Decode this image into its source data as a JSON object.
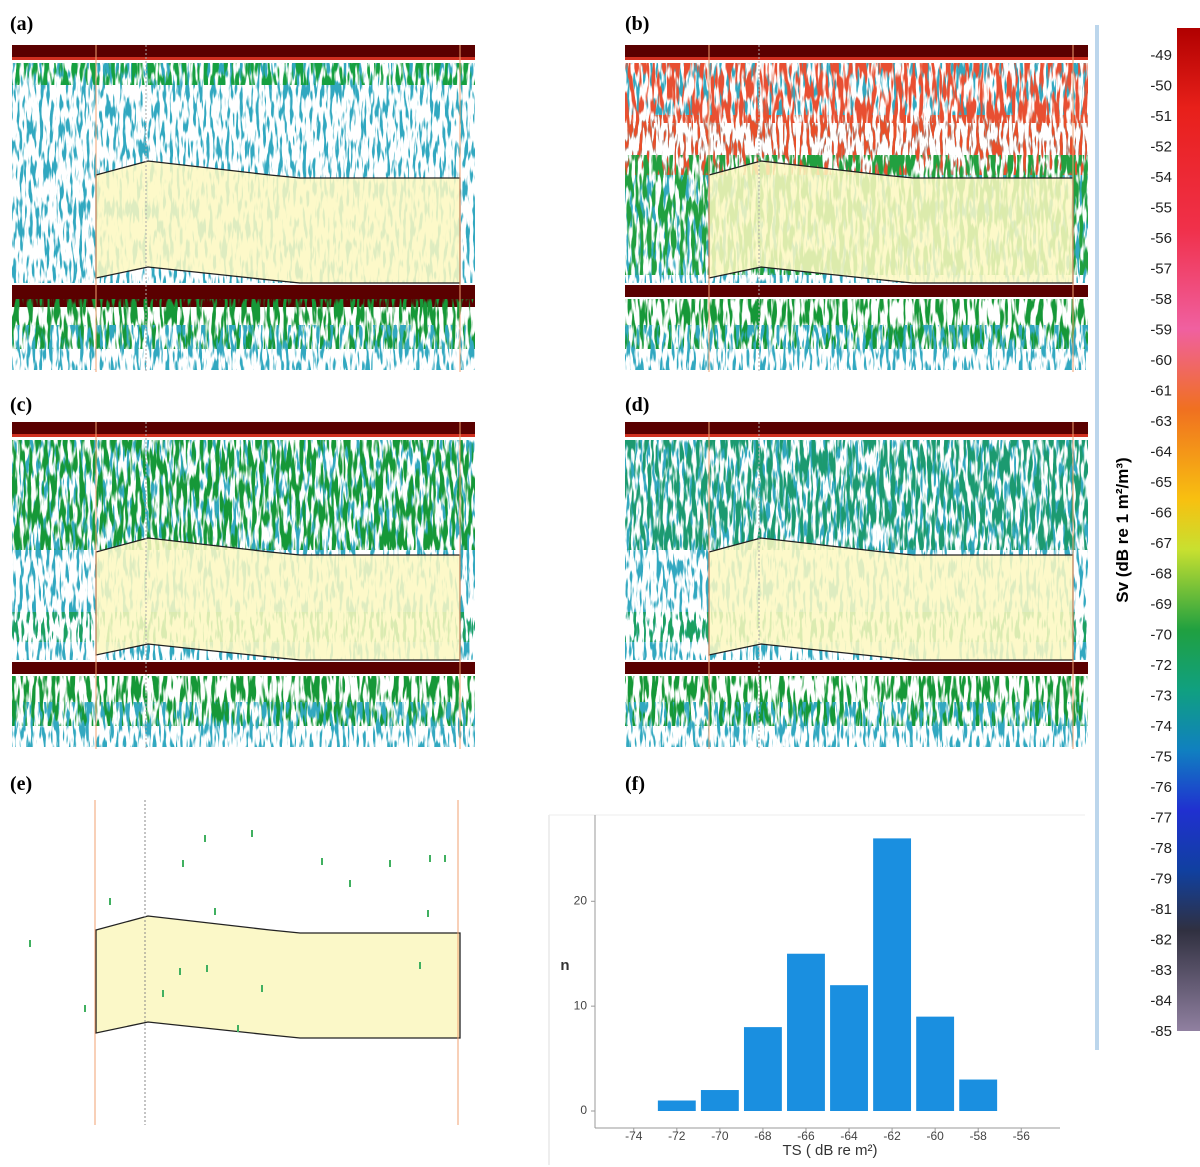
{
  "panel_labels": [
    "(a)",
    "(b)",
    "(c)",
    "(d)",
    "(e)",
    "(f)"
  ],
  "colorbar": {
    "title": "Sv (dB re 1 m²/m³)",
    "labels": [
      "-49",
      "-50",
      "-51",
      "-52",
      "-54",
      "-55",
      "-56",
      "-57",
      "-58",
      "-59",
      "-60",
      "-61",
      "-63",
      "-64",
      "-65",
      "-66",
      "-67",
      "-68",
      "-69",
      "-70",
      "-72",
      "-73",
      "-74",
      "-75",
      "-76",
      "-77",
      "-78",
      "-79",
      "-81",
      "-82",
      "-83",
      "-84",
      "-85"
    ]
  },
  "chart_data": {
    "type": "bar",
    "x_label": "TS ( dB re m²)",
    "y_label": "n",
    "x": [
      -74,
      -72,
      -70,
      -68,
      -66,
      -64,
      -62,
      -60,
      -58,
      -56
    ],
    "values": [
      0,
      1,
      2,
      8,
      15,
      12,
      26,
      9,
      3,
      0
    ],
    "color": "#1a8fe0",
    "xlim": [
      -75.8,
      -54.2
    ],
    "ylim": [
      0,
      26.8
    ],
    "xticks": [
      -74,
      -72,
      -70,
      -68,
      -66,
      -64,
      -62,
      -60,
      -58,
      -56
    ],
    "yticks": [
      0,
      10,
      20
    ]
  }
}
